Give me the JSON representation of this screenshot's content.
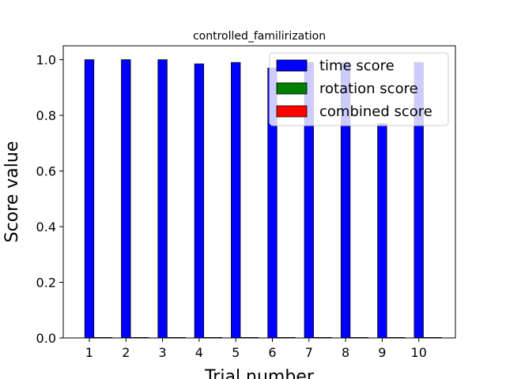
{
  "chart_data": {
    "type": "bar",
    "title": "controlled_familirization",
    "xlabel": "Trial number",
    "ylabel": "Score value",
    "categories": [
      "1",
      "2",
      "3",
      "4",
      "5",
      "6",
      "7",
      "8",
      "9",
      "10"
    ],
    "ylim": [
      0,
      1.05
    ],
    "yticks": [
      "0.0",
      "0.2",
      "0.4",
      "0.6",
      "0.8",
      "1.0"
    ],
    "legend_position": "top-right",
    "series": [
      {
        "name": "time score",
        "color": "#0000ff",
        "values": [
          1.0,
          1.0,
          1.0,
          0.985,
          0.99,
          0.97,
          0.99,
          0.99,
          0.77,
          0.99
        ]
      },
      {
        "name": "rotation score",
        "color": "#008000",
        "values": [
          0,
          0,
          0,
          0,
          0,
          0,
          0,
          0,
          0,
          0
        ]
      },
      {
        "name": "combined score",
        "color": "#ff0000",
        "values": [
          0,
          0,
          0,
          0,
          0,
          0,
          0,
          0,
          0,
          0
        ]
      }
    ],
    "grid": false
  }
}
